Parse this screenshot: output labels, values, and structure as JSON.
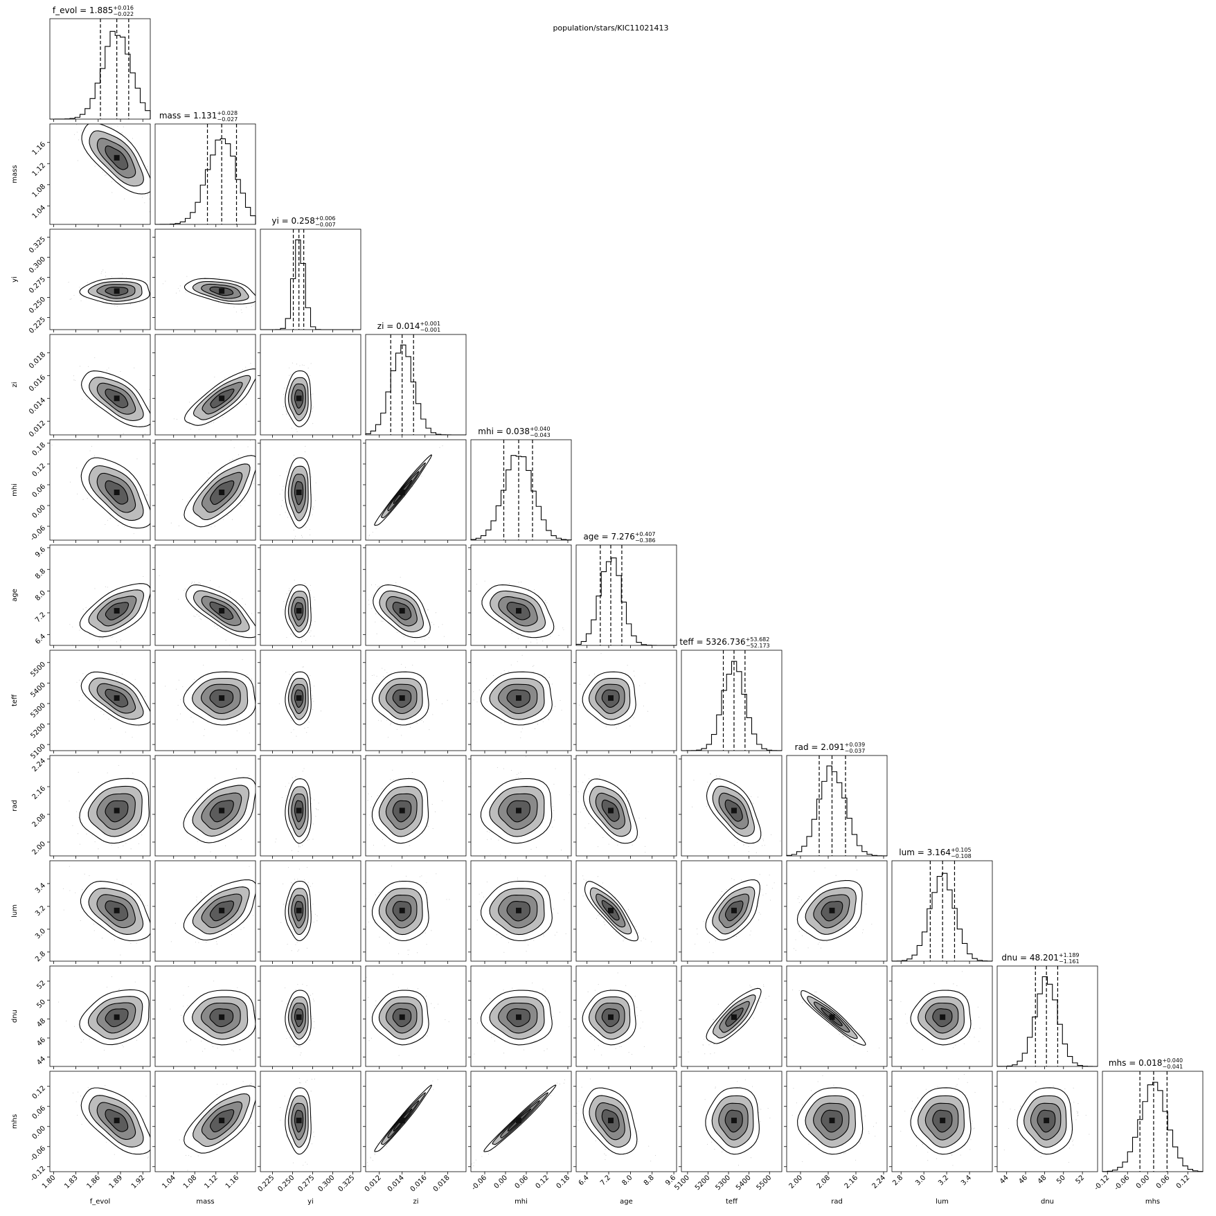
{
  "chart_data": {
    "type": "corner",
    "title": "population/stars/KIC11021413",
    "parameters": [
      {
        "name": "f_evol",
        "label": "f_evol",
        "median": 1.885,
        "plus": "0.016",
        "minus": "0.022",
        "median_label": "1.885",
        "range": [
          1.795,
          1.93
        ],
        "ticks": [
          "1.80",
          "1.83",
          "1.86",
          "1.89",
          "1.92"
        ]
      },
      {
        "name": "mass",
        "label": "mass",
        "median": 1.131,
        "plus": "0.028",
        "minus": "0.027",
        "median_label": "1.131",
        "range": [
          1.005,
          1.195
        ],
        "ticks": [
          "1.04",
          "1.08",
          "1.12",
          "1.16"
        ]
      },
      {
        "name": "yi",
        "label": "yi",
        "median": 0.258,
        "plus": "0.006",
        "minus": "0.007",
        "median_label": "0.258",
        "range": [
          0.21,
          0.335
        ],
        "ticks": [
          "0.225",
          "0.250",
          "0.275",
          "0.300",
          "0.325"
        ]
      },
      {
        "name": "zi",
        "label": "zi",
        "median": 0.014,
        "plus": "0.001",
        "minus": "0.001",
        "median_label": "0.014",
        "range": [
          0.0108,
          0.0196
        ],
        "ticks": [
          "0.012",
          "0.014",
          "0.016",
          "0.018"
        ]
      },
      {
        "name": "mhi",
        "label": "mhi",
        "median": 0.038,
        "plus": "0.040",
        "minus": "0.043",
        "median_label": "0.038",
        "range": [
          -0.1,
          0.19
        ],
        "ticks": [
          "-0.06",
          "0.00",
          "0.06",
          "0.12",
          "0.18"
        ]
      },
      {
        "name": "age",
        "label": "age",
        "median": 7.276,
        "plus": "0.407",
        "minus": "0.386",
        "median_label": "7.276",
        "range": [
          6.0,
          9.7
        ],
        "ticks": [
          "6.4",
          "7.2",
          "8.0",
          "8.8",
          "9.6"
        ]
      },
      {
        "name": "teff",
        "label": "teff",
        "median": 5326.736,
        "plus": "53.682",
        "minus": "52.173",
        "median_label": "5326.736",
        "range": [
          5070,
          5560
        ],
        "ticks": [
          "5100",
          "5200",
          "5300",
          "5400",
          "5500"
        ]
      },
      {
        "name": "rad",
        "label": "rad",
        "median": 2.091,
        "plus": "0.039",
        "minus": "0.037",
        "median_label": "2.091",
        "range": [
          1.96,
          2.25
        ],
        "ticks": [
          "2.00",
          "2.08",
          "2.16",
          "2.24"
        ]
      },
      {
        "name": "lum",
        "label": "lum",
        "median": 3.164,
        "plus": "0.105",
        "minus": "0.108",
        "median_label": "3.164",
        "range": [
          2.72,
          3.6
        ],
        "ticks": [
          "2.8",
          "3.0",
          "3.2",
          "3.4"
        ]
      },
      {
        "name": "dnu",
        "label": "dnu",
        "median": 48.201,
        "plus": "1.189",
        "minus": "1.161",
        "median_label": "48.201",
        "range": [
          43.0,
          53.6
        ],
        "ticks": [
          "44",
          "46",
          "48",
          "50",
          "52"
        ]
      },
      {
        "name": "mhs",
        "label": "mhs",
        "median": 0.018,
        "plus": "0.040",
        "minus": "0.041",
        "median_label": "0.018",
        "range": [
          -0.135,
          0.165
        ],
        "ticks": [
          "-0.12",
          "-0.06",
          "0.00",
          "0.06",
          "0.12"
        ]
      }
    ],
    "correlations": [
      [
        1,
        -0.7,
        0.0,
        -0.65,
        -0.6,
        0.55,
        -0.6,
        0.15,
        -0.45,
        0.25,
        -0.6
      ],
      [
        -0.7,
        1,
        -0.45,
        0.8,
        0.7,
        -0.75,
        0.0,
        0.45,
        0.55,
        0.0,
        0.65
      ],
      [
        0.0,
        -0.45,
        1,
        0.0,
        0.0,
        0.0,
        0.0,
        0.0,
        0.0,
        0.0,
        0.0
      ],
      [
        -0.65,
        0.8,
        0.0,
        1,
        0.99,
        -0.5,
        0.0,
        0.1,
        0.0,
        0.0,
        0.99
      ],
      [
        -0.6,
        0.7,
        0.0,
        0.99,
        1,
        -0.45,
        0.0,
        0.1,
        0.0,
        0.0,
        0.99
      ],
      [
        0.55,
        -0.75,
        0.0,
        -0.5,
        -0.45,
        1,
        0.0,
        -0.55,
        -0.85,
        0.0,
        -0.4
      ],
      [
        -0.6,
        0.0,
        0.0,
        0.0,
        0.0,
        0.0,
        1,
        -0.6,
        0.55,
        0.8,
        0.0
      ],
      [
        0.15,
        0.45,
        0.0,
        0.1,
        0.1,
        -0.55,
        -0.6,
        1,
        0.3,
        -0.95,
        0.0
      ],
      [
        -0.45,
        0.55,
        0.0,
        0.0,
        0.0,
        -0.85,
        0.55,
        0.3,
        1,
        0.0,
        0.0
      ],
      [
        0.25,
        0.0,
        0.0,
        0.0,
        0.0,
        0.0,
        0.8,
        -0.95,
        0.0,
        1,
        0.0
      ],
      [
        -0.6,
        0.65,
        0.0,
        0.99,
        0.99,
        -0.4,
        0.0,
        0.0,
        0.0,
        0.0,
        1
      ]
    ],
    "quantile_lines": "16th, 50th, 84th percentiles (dashed)",
    "contour_levels": 4,
    "grid": false
  }
}
